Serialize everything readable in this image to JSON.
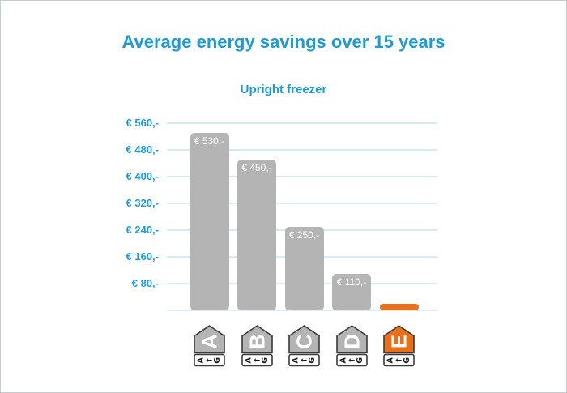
{
  "page": {
    "title": "Average energy savings over 15 years",
    "subtitle": "Upright freezer"
  },
  "colors": {
    "accent_blue": "#1b9cd8",
    "grid_blue": "#d6ebf8",
    "bar_gray": "#b4b4b4",
    "bar_orange": "#e8701a",
    "tag_outline": "#3a3a3a",
    "tag_text_white": "#ffffff",
    "tag_scale_text_black": "#1a1a1a",
    "frame_border": "#c6cacc"
  },
  "chart_data": {
    "type": "bar",
    "title": "Average energy savings over 15 years",
    "subtitle": "Upright freezer",
    "categories": [
      "A",
      "B",
      "C",
      "D",
      "E"
    ],
    "values": [
      530,
      450,
      250,
      110,
      20
    ],
    "bar_labels": [
      "€ 530,-",
      "€ 450,-",
      "€ 250,-",
      "€ 110,-",
      ""
    ],
    "bar_colors": [
      "#b4b4b4",
      "#b4b4b4",
      "#b4b4b4",
      "#b4b4b4",
      "#e8701a"
    ],
    "unit": "EUR",
    "ylim": [
      0,
      580
    ],
    "yticks": [
      {
        "value": 560,
        "label": "€ 560,-"
      },
      {
        "value": 480,
        "label": "€ 480,-"
      },
      {
        "value": 400,
        "label": "€ 400,-"
      },
      {
        "value": 320,
        "label": "€ 320,-"
      },
      {
        "value": 240,
        "label": "€ 240,-"
      },
      {
        "value": 160,
        "label": "€ 160,-"
      },
      {
        "value": 80,
        "label": "€ 80,-"
      }
    ],
    "xlabel": "",
    "ylabel": "",
    "grid": "horizontal",
    "legend": "none",
    "x_axis_tags": {
      "style": "eu-energy-label-arrow-pointing-up",
      "letters": [
        "A",
        "B",
        "C",
        "D",
        "E"
      ],
      "scale_text": "A←G",
      "highlight_index": 4
    }
  }
}
